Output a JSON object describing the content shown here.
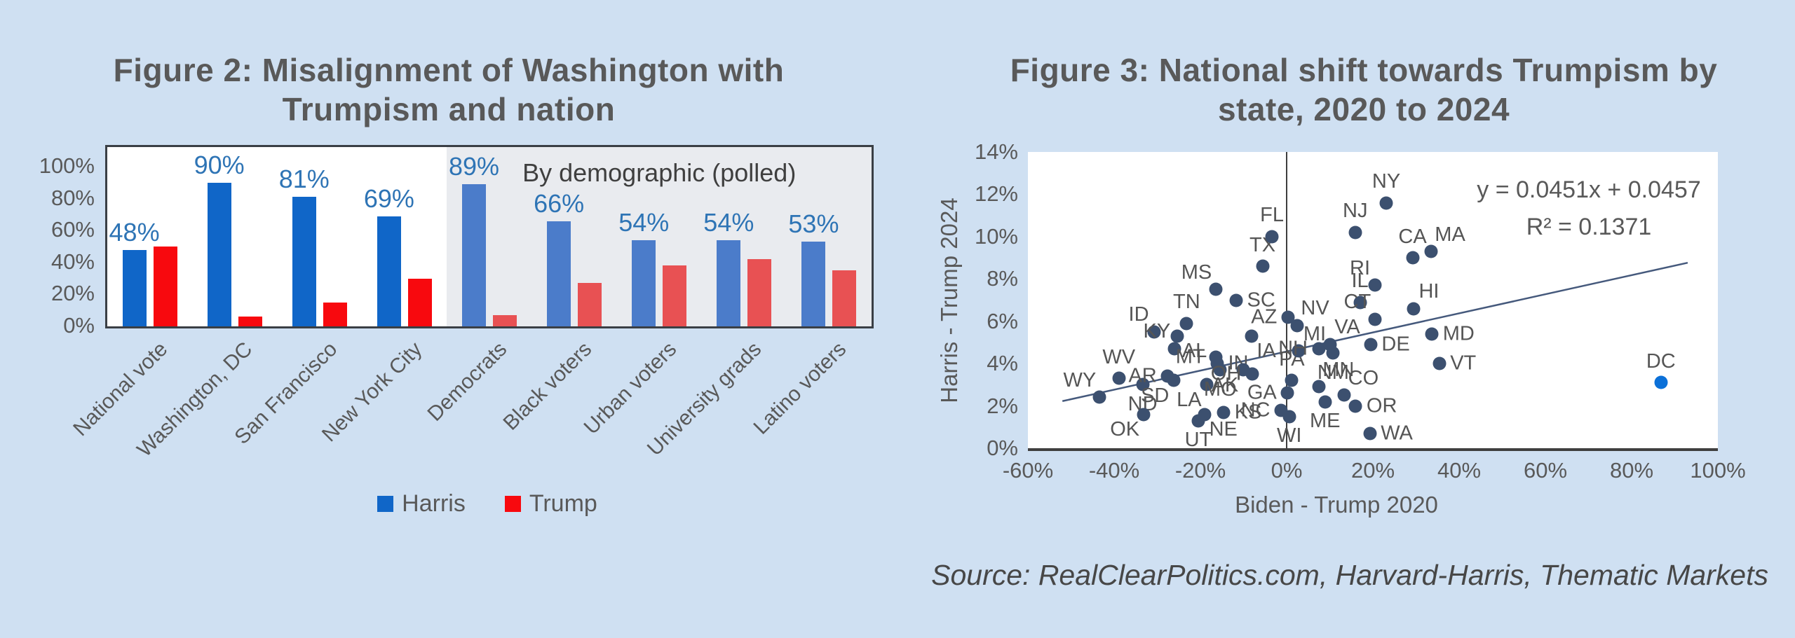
{
  "page": {
    "background": "#cfe0f2",
    "source_note": "Source: RealClearPolitics.com, Harvard-Harris, Thematic Markets"
  },
  "figure2": {
    "title_lines": [
      "Figure 2: Misalignment of Washington with",
      "Trumpism and nation"
    ],
    "colors": {
      "harris_main": "#1066c8",
      "trump_main": "#f8090e",
      "harris_demo": "#4b7cca",
      "trump_demo": "#e85153",
      "panel_gray": "#e9ebef",
      "data_label_blue": "#2e74b5"
    }
  },
  "figure3": {
    "title_lines": [
      "Figure 3: National shift towards Trumpism by",
      "state, 2020 to 2024"
    ],
    "colors": {
      "dot": "#3c506f",
      "dc_dot": "#0b70d8",
      "trendline": "#45597c"
    }
  },
  "chart_data": [
    {
      "id": "fig2",
      "type": "bar",
      "title": "Figure 2: Misalignment of Washington with Trumpism and nation",
      "categories": [
        "National vote",
        "Washington, DC",
        "San Francisco",
        "New York City",
        "Democrats",
        "Black voters",
        "Urban voters",
        "University grads",
        "Latino voters"
      ],
      "series": [
        {
          "name": "Harris",
          "values": [
            48,
            90,
            81,
            69,
            89,
            66,
            54,
            54,
            53
          ]
        },
        {
          "name": "Trump",
          "values": [
            50,
            6,
            15,
            30,
            7,
            27,
            38,
            42,
            35
          ]
        }
      ],
      "data_labels": [
        "48%",
        "90%",
        "81%",
        "69%",
        "89%",
        "66%",
        "54%",
        "54%",
        "53%"
      ],
      "annotation": "By demographic (polled)",
      "demographic_region_start_index": 4,
      "ylabel": "",
      "xlabel": "",
      "ylim": [
        0,
        112
      ],
      "y_ticks": [
        {
          "value": 0,
          "label": "0%"
        },
        {
          "value": 20,
          "label": "20%"
        },
        {
          "value": 40,
          "label": "40%"
        },
        {
          "value": 60,
          "label": "60%"
        },
        {
          "value": 80,
          "label": "80%"
        },
        {
          "value": 100,
          "label": "100%"
        }
      ],
      "grid": false,
      "legend_position": "bottom",
      "legend": [
        "Harris",
        "Trump"
      ]
    },
    {
      "id": "fig3",
      "type": "scatter",
      "title": "Figure 3: National shift towards Trumpism by state, 2020 to 2024",
      "xlabel": "Biden - Trump 2020",
      "ylabel": "Harris - Trump 2024",
      "xlim": [
        -60,
        100
      ],
      "ylim": [
        0,
        14
      ],
      "x_ticks": [
        {
          "value": -60,
          "label": "-60%"
        },
        {
          "value": -40,
          "label": "-40%"
        },
        {
          "value": -20,
          "label": "-20%"
        },
        {
          "value": 0,
          "label": "0%"
        },
        {
          "value": 20,
          "label": "20%"
        },
        {
          "value": 40,
          "label": "40%"
        },
        {
          "value": 60,
          "label": "60%"
        },
        {
          "value": 80,
          "label": "80%"
        },
        {
          "value": 100,
          "label": "100%"
        }
      ],
      "y_ticks": [
        {
          "value": 0,
          "label": "0%"
        },
        {
          "value": 2,
          "label": "2%"
        },
        {
          "value": 4,
          "label": "4%"
        },
        {
          "value": 6,
          "label": "6%"
        },
        {
          "value": 8,
          "label": "8%"
        },
        {
          "value": 10,
          "label": "10%"
        },
        {
          "value": 12,
          "label": "12%"
        },
        {
          "value": 14,
          "label": "14%"
        }
      ],
      "grid": false,
      "trendline": {
        "equation": "y = 0.0451x + 0.0457",
        "r_squared": "R² = 0.1371",
        "slope": 0.0451,
        "intercept_pct": 4.57,
        "x_start": -52,
        "x_end": 93
      },
      "highlight_point": "DC",
      "points": [
        {
          "state": "WY",
          "x": -43.4,
          "y": 2.4,
          "label_pos": "nw"
        },
        {
          "state": "WV",
          "x": -38.9,
          "y": 3.3,
          "label_pos": "n"
        },
        {
          "state": "ND",
          "x": -33.4,
          "y": 3.0,
          "label_pos": "s"
        },
        {
          "state": "OK",
          "x": -33.1,
          "y": 1.6,
          "label_pos": "sw"
        },
        {
          "state": "ID",
          "x": -30.8,
          "y": 5.5,
          "label_pos": "nw"
        },
        {
          "state": "AR",
          "x": -27.6,
          "y": 3.4,
          "label_pos": "w"
        },
        {
          "state": "KY",
          "x": -26.0,
          "y": 4.7,
          "label_pos": "nw"
        },
        {
          "state": "SD",
          "x": -26.2,
          "y": 3.2,
          "label_pos": "sw"
        },
        {
          "state": "AL",
          "x": -25.4,
          "y": 5.3,
          "label_pos": "se"
        },
        {
          "state": "TN",
          "x": -23.2,
          "y": 5.9,
          "label_pos": "n"
        },
        {
          "state": "UT",
          "x": -20.5,
          "y": 1.3,
          "label_pos": "s"
        },
        {
          "state": "NE",
          "x": -19.0,
          "y": 1.6,
          "label_pos": "se"
        },
        {
          "state": "LA",
          "x": -18.6,
          "y": 3.0,
          "label_pos": "sw"
        },
        {
          "state": "MS",
          "x": -16.5,
          "y": 7.5,
          "label_pos": "nw"
        },
        {
          "state": "MT",
          "x": -16.4,
          "y": 4.3,
          "label_pos": "w"
        },
        {
          "state": "IN",
          "x": -16.1,
          "y": 4.0,
          "label_pos": "e"
        },
        {
          "state": "MO",
          "x": -15.4,
          "y": 3.7,
          "label_pos": "s"
        },
        {
          "state": "KS",
          "x": -14.6,
          "y": 1.7,
          "label_pos": "e"
        },
        {
          "state": "SC",
          "x": -11.7,
          "y": 7.0,
          "label_pos": "e"
        },
        {
          "state": "AK",
          "x": -10.1,
          "y": 3.7,
          "label_pos": "sw"
        },
        {
          "state": "IA",
          "x": -8.2,
          "y": 5.3,
          "label_pos": "se"
        },
        {
          "state": "OH",
          "x": -8.0,
          "y": 3.5,
          "label_pos": "w"
        },
        {
          "state": "TX",
          "x": -5.6,
          "y": 8.6,
          "label_pos": "n"
        },
        {
          "state": "FL",
          "x": -3.4,
          "y": 10.0,
          "label_pos": "n"
        },
        {
          "state": "NC",
          "x": -1.3,
          "y": 1.8,
          "label_pos": "w"
        },
        {
          "state": "GA",
          "x": 0.2,
          "y": 2.6,
          "label_pos": "w"
        },
        {
          "state": "AZ",
          "x": 0.3,
          "y": 6.2,
          "label_pos": "w"
        },
        {
          "state": "WI",
          "x": 0.6,
          "y": 1.5,
          "label_pos": "s"
        },
        {
          "state": "PA",
          "x": 1.2,
          "y": 3.2,
          "label_pos": "n"
        },
        {
          "state": "NV",
          "x": 2.4,
          "y": 5.8,
          "label_pos": "ne"
        },
        {
          "state": "MI",
          "x": 2.8,
          "y": 4.6,
          "label_pos": "ne"
        },
        {
          "state": "MN",
          "x": 7.5,
          "y": 2.9,
          "label_pos": "ne"
        },
        {
          "state": "NH",
          "x": 7.4,
          "y": 4.7,
          "label_pos": "w"
        },
        {
          "state": "ME",
          "x": 8.9,
          "y": 2.2,
          "label_pos": "s"
        },
        {
          "state": "VA",
          "x": 10.1,
          "y": 4.9,
          "label_pos": "ne"
        },
        {
          "state": "NM",
          "x": 10.8,
          "y": 4.5,
          "label_pos": "s"
        },
        {
          "state": "CO",
          "x": 13.4,
          "y": 2.5,
          "label_pos": "ne"
        },
        {
          "state": "NJ",
          "x": 15.9,
          "y": 10.2,
          "label_pos": "n"
        },
        {
          "state": "OR",
          "x": 16.0,
          "y": 2.0,
          "label_pos": "e"
        },
        {
          "state": "IL",
          "x": 17.0,
          "y": 6.9,
          "label_pos": "n"
        },
        {
          "state": "DE",
          "x": 19.5,
          "y": 4.9,
          "label_pos": "e"
        },
        {
          "state": "WA",
          "x": 19.3,
          "y": 0.7,
          "label_pos": "e"
        },
        {
          "state": "CT",
          "x": 20.5,
          "y": 6.1,
          "label_pos": "nw"
        },
        {
          "state": "RI",
          "x": 20.5,
          "y": 7.7,
          "label_pos": "nw"
        },
        {
          "state": "NY",
          "x": 23.1,
          "y": 11.6,
          "label_pos": "n"
        },
        {
          "state": "CA",
          "x": 29.2,
          "y": 9.0,
          "label_pos": "n"
        },
        {
          "state": "HI",
          "x": 29.5,
          "y": 6.6,
          "label_pos": "ne"
        },
        {
          "state": "MD",
          "x": 33.7,
          "y": 5.4,
          "label_pos": "e"
        },
        {
          "state": "MA",
          "x": 33.5,
          "y": 9.3,
          "label_pos": "ne"
        },
        {
          "state": "VT",
          "x": 35.4,
          "y": 4.0,
          "label_pos": "e"
        },
        {
          "state": "DC",
          "x": 86.8,
          "y": 3.1,
          "label_pos": "n"
        }
      ]
    }
  ]
}
